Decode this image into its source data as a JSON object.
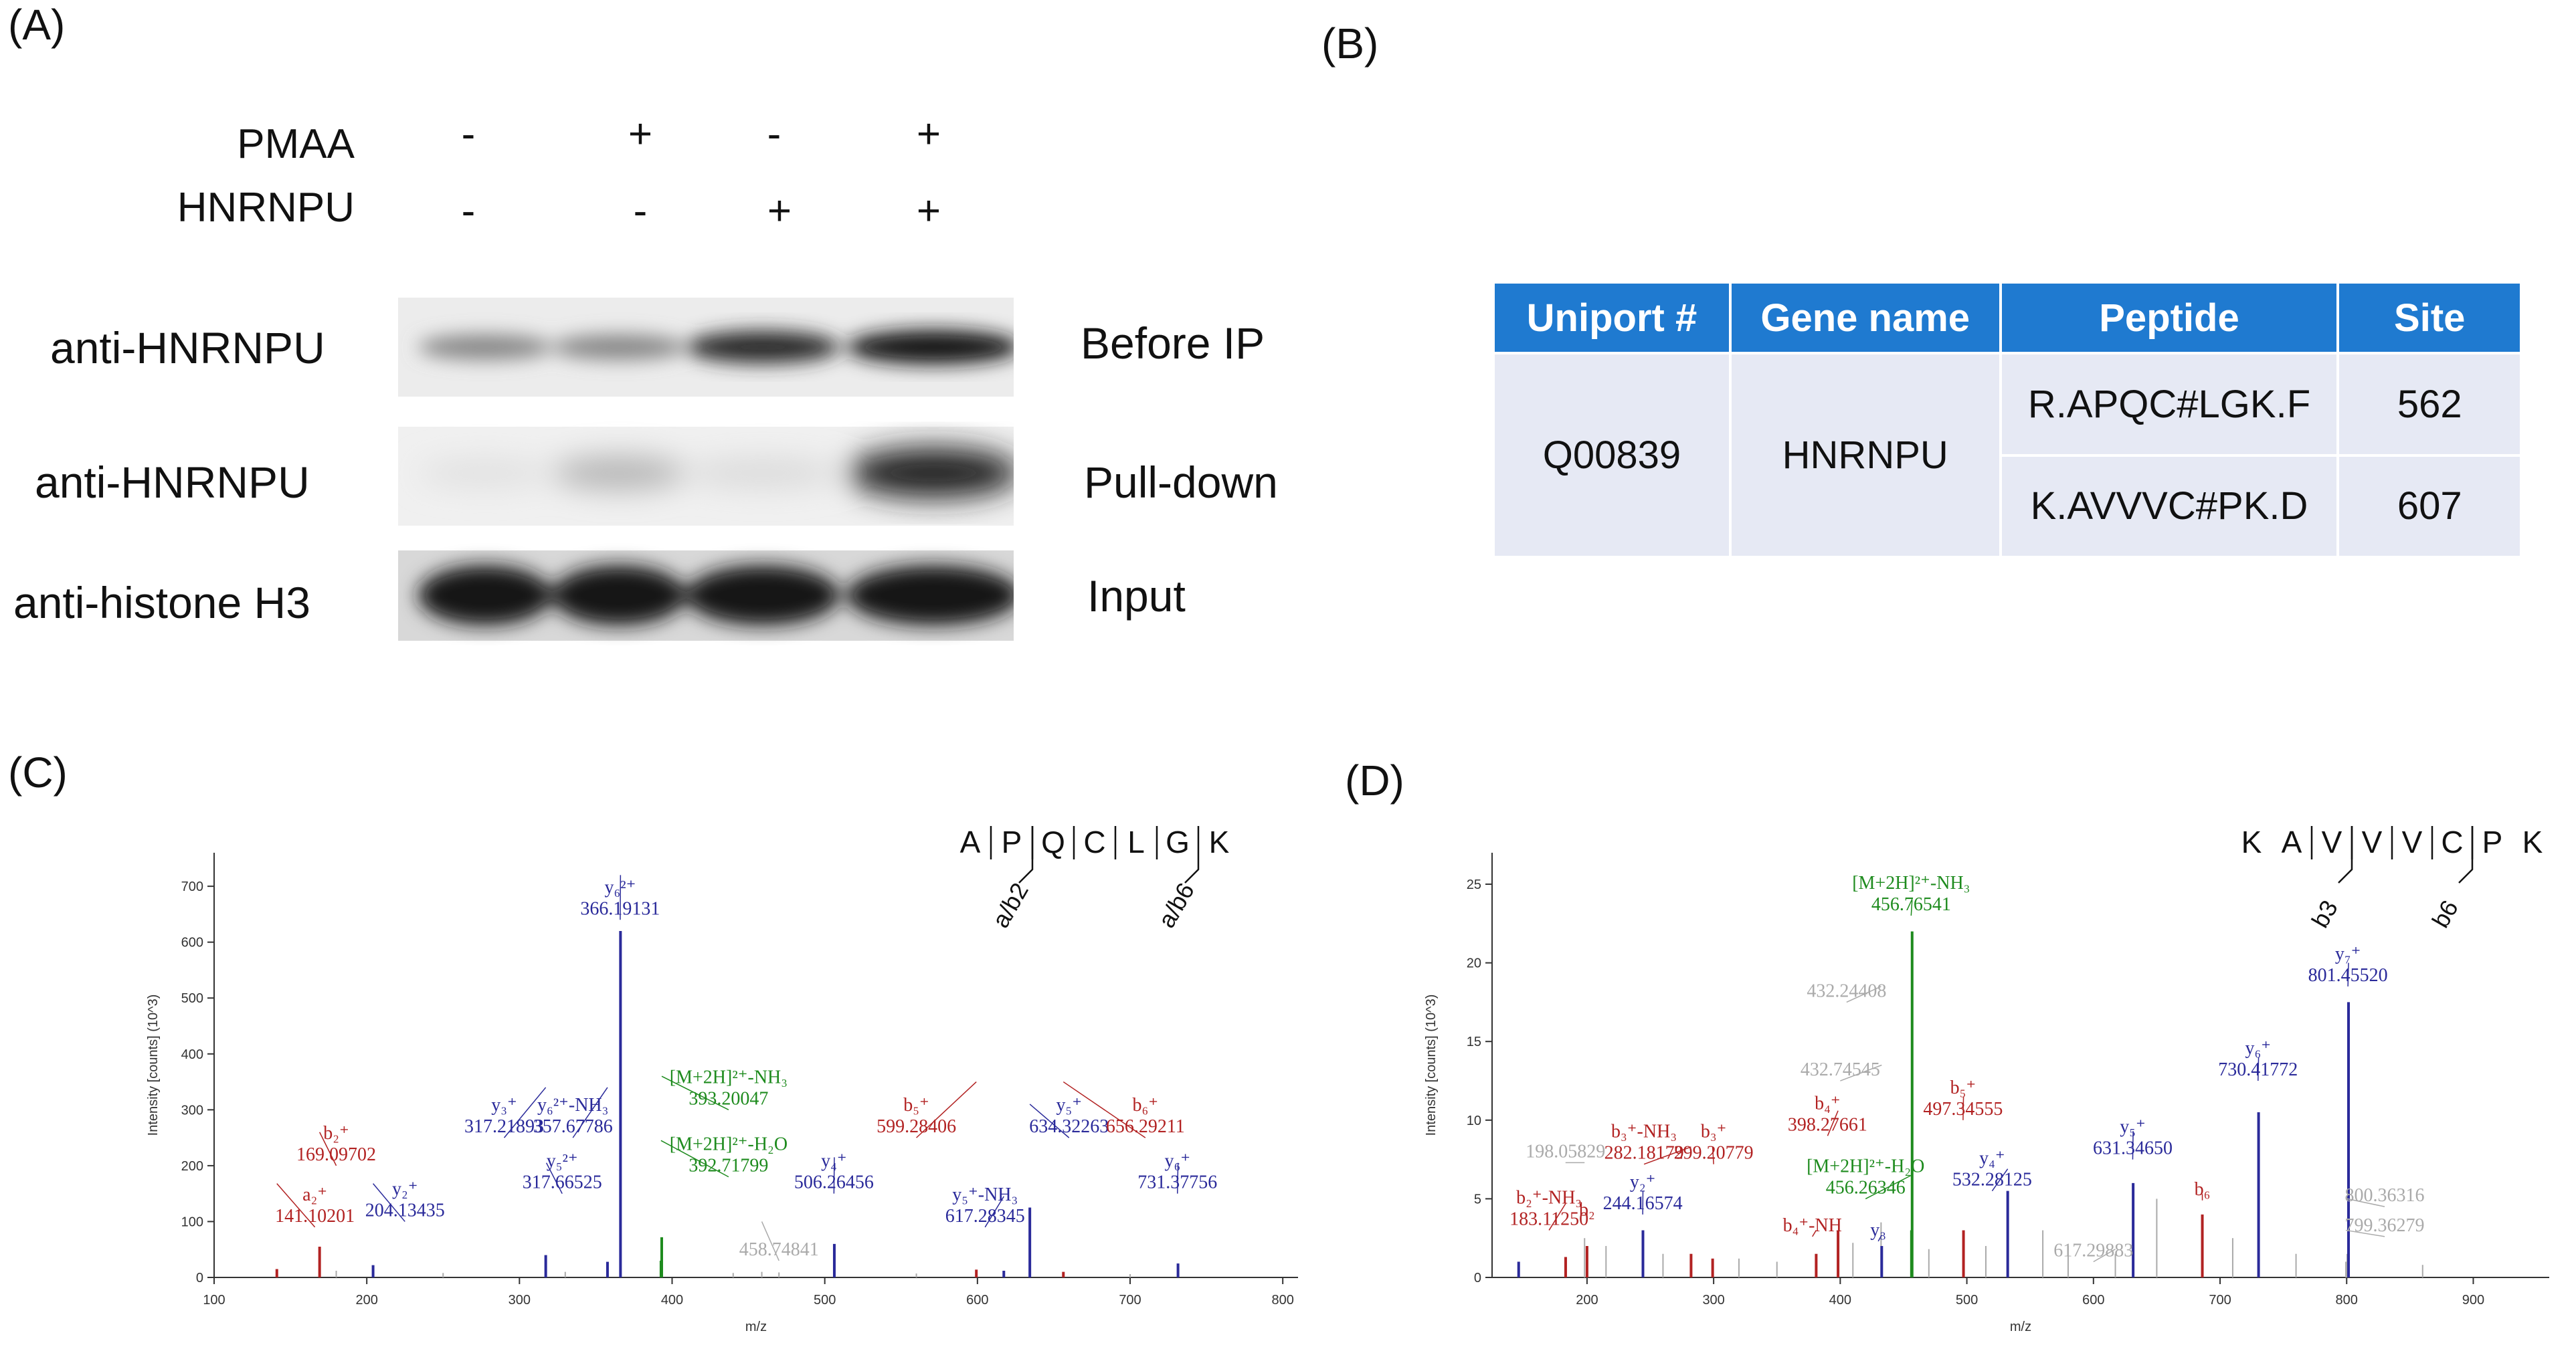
{
  "panels": {
    "a": "(A)",
    "b": "(B)",
    "c": "(C)",
    "d": "(D)"
  },
  "panel_a": {
    "conditions": [
      {
        "name": "PMAA",
        "values": [
          "-",
          "+",
          "-",
          "+"
        ]
      },
      {
        "name": "HNRNPU",
        "values": [
          "-",
          "-",
          "+",
          "+"
        ]
      }
    ],
    "rows": [
      {
        "antibody": "anti-HNRNPU",
        "description": "Before IP",
        "intensities": [
          0.45,
          0.45,
          0.85,
          0.95
        ]
      },
      {
        "antibody": "anti-HNRNPU",
        "description": "Pull-down",
        "intensities": [
          0.05,
          0.25,
          0.08,
          0.9
        ]
      },
      {
        "antibody": "anti-histone H3",
        "description": "Input",
        "intensities": [
          0.95,
          0.95,
          0.95,
          0.95
        ]
      }
    ]
  },
  "panel_b": {
    "headers": [
      "Uniport #",
      "Gene name",
      "Peptide",
      "Site"
    ],
    "uniprot": "Q00839",
    "gene": "HNRNPU",
    "rows": [
      {
        "peptide": "R.APQC#LGK.F",
        "site": "562"
      },
      {
        "peptide": "K.AVVVC#PK.D",
        "site": "607"
      }
    ],
    "colors": {
      "header_bg": "#1f7ad0",
      "cell_bg": "#e6e9f4"
    }
  },
  "chart_data": [
    {
      "type": "bar",
      "panel": "C",
      "xlabel": "m/z",
      "ylabel": "Intensity [counts] (10^3)",
      "xlim": [
        100,
        810
      ],
      "ylim": [
        0,
        760
      ],
      "xticks": [
        100,
        200,
        300,
        400,
        500,
        600,
        700,
        800
      ],
      "yticks": [
        0,
        100,
        200,
        300,
        400,
        500,
        600,
        700
      ],
      "peptide": {
        "sequence": [
          "A",
          "P",
          "Q",
          "C",
          "L",
          "G",
          "K"
        ],
        "y_ions": [
          "y6",
          "y5",
          "y4",
          "y3",
          "y2"
        ],
        "b_ions": [
          "a/b2",
          "a/b6"
        ]
      },
      "peaks": [
        {
          "mz": 141.1,
          "intensity": 15,
          "color": "#b22222"
        },
        {
          "mz": 169.1,
          "intensity": 55,
          "color": "#b22222"
        },
        {
          "mz": 204.13,
          "intensity": 22,
          "color": "#2a2a9a"
        },
        {
          "mz": 317.22,
          "intensity": 40,
          "color": "#2a2a9a"
        },
        {
          "mz": 357.68,
          "intensity": 28,
          "color": "#2a2a9a"
        },
        {
          "mz": 366.19,
          "intensity": 620,
          "color": "#2a2a9a"
        },
        {
          "mz": 392.72,
          "intensity": 30,
          "color": "#1e8b1e"
        },
        {
          "mz": 393.2,
          "intensity": 72,
          "color": "#1e8b1e"
        },
        {
          "mz": 458.75,
          "intensity": 10,
          "color": "#aaaaaa"
        },
        {
          "mz": 506.26,
          "intensity": 60,
          "color": "#2a2a9a"
        },
        {
          "mz": 599.28,
          "intensity": 14,
          "color": "#b22222"
        },
        {
          "mz": 617.28,
          "intensity": 12,
          "color": "#2a2a9a"
        },
        {
          "mz": 634.32,
          "intensity": 125,
          "color": "#2a2a9a"
        },
        {
          "mz": 656.29,
          "intensity": 10,
          "color": "#b22222"
        },
        {
          "mz": 731.38,
          "intensity": 25,
          "color": "#2a2a9a"
        },
        {
          "mz": 180,
          "intensity": 12,
          "color": "#aaaaaa"
        },
        {
          "mz": 250,
          "intensity": 8,
          "color": "#aaaaaa"
        },
        {
          "mz": 330,
          "intensity": 10,
          "color": "#aaaaaa"
        },
        {
          "mz": 440,
          "intensity": 8,
          "color": "#aaaaaa"
        },
        {
          "mz": 470,
          "intensity": 9,
          "color": "#aaaaaa"
        },
        {
          "mz": 560,
          "intensity": 7,
          "color": "#aaaaaa"
        },
        {
          "mz": 700,
          "intensity": 6,
          "color": "#aaaaaa"
        }
      ],
      "annotations": [
        {
          "lines": [
            "a₂⁺",
            "141.10201"
          ],
          "color": "#b22222",
          "mz": 141.1,
          "ty": 168,
          "lx": 166,
          "ly": 90
        },
        {
          "lines": [
            "b₂⁺",
            "169.09702"
          ],
          "color": "#b22222",
          "mz": 169.1,
          "ty": 260,
          "lx": 180,
          "ly": 200
        },
        {
          "lines": [
            "y₂⁺",
            "204.13435"
          ],
          "color": "#2a2a9a",
          "mz": 204.13,
          "ty": 168,
          "lx": 225,
          "ly": 100
        },
        {
          "lines": [
            "y₃⁺",
            "317.21893"
          ],
          "color": "#2a2a9a",
          "mz": 317.22,
          "ty": 340,
          "lx": 290,
          "ly": 250
        },
        {
          "lines": [
            "y₅²⁺",
            "317.66525"
          ],
          "color": "#2a2a9a",
          "mz": 317.66,
          "ty": 205,
          "lx": 328,
          "ly": 150
        },
        {
          "lines": [
            "y₆²⁺-NH₃",
            "357.67786"
          ],
          "color": "#2a2a9a",
          "mz": 357.68,
          "ty": 340,
          "lx": 335,
          "ly": 250
        },
        {
          "lines": [
            "y₆²⁺",
            "366.19131"
          ],
          "color": "#2a2a9a",
          "mz": 366.19,
          "ty": 720,
          "lx": 366,
          "ly": 640
        },
        {
          "lines": [
            "[M+2H]²⁺-NH₃",
            "393.20047"
          ],
          "color": "#1e8b1e",
          "mz": 393.2,
          "ty": 360,
          "lx": 437,
          "ly": 300
        },
        {
          "lines": [
            "[M+2H]²⁺-H₂O",
            "392.71799"
          ],
          "color": "#1e8b1e",
          "mz": 392.72,
          "ty": 245,
          "lx": 437,
          "ly": 180
        },
        {
          "lines": [
            "458.74841"
          ],
          "color": "#aaaaaa",
          "mz": 458.75,
          "ty": 100,
          "lx": 470,
          "ly": 30
        },
        {
          "lines": [
            "y₄⁺",
            "506.26456"
          ],
          "color": "#2a2a9a",
          "mz": 506.26,
          "ty": 215,
          "lx": 506,
          "ly": 150
        },
        {
          "lines": [
            "b₅⁺",
            "599.28406"
          ],
          "color": "#b22222",
          "mz": 599.28,
          "ty": 350,
          "lx": 560,
          "ly": 250
        },
        {
          "lines": [
            "y₅⁺-NH₃",
            "617.28345"
          ],
          "color": "#2a2a9a",
          "mz": 617.28,
          "ty": 145,
          "lx": 605,
          "ly": 90
        },
        {
          "lines": [
            "y₅⁺",
            "634.32263"
          ],
          "color": "#2a2a9a",
          "mz": 634.32,
          "ty": 310,
          "lx": 660,
          "ly": 250
        },
        {
          "lines": [
            "b₆⁺",
            "656.29211"
          ],
          "color": "#b22222",
          "mz": 656.29,
          "ty": 350,
          "lx": 710,
          "ly": 250
        },
        {
          "lines": [
            "y₆⁺",
            "731.37756"
          ],
          "color": "#2a2a9a",
          "mz": 731.38,
          "ty": 205,
          "lx": 731,
          "ly": 150
        }
      ]
    },
    {
      "type": "bar",
      "panel": "D",
      "xlabel": "m/z",
      "ylabel": "Intensity [counts] (10^3)",
      "xlim": [
        125,
        960
      ],
      "ylim": [
        0,
        27
      ],
      "xticks": [
        200,
        300,
        400,
        500,
        600,
        700,
        800,
        900
      ],
      "yticks": [
        0,
        5,
        10,
        15,
        20,
        25
      ],
      "peptide": {
        "sequence": [
          "K",
          "A",
          "V",
          "V",
          "V",
          "C",
          "P",
          "K"
        ],
        "y_ions": [
          "y7",
          "y6",
          "y5",
          "y4",
          "y2"
        ],
        "b_ions": [
          "b3",
          "b6"
        ]
      },
      "peaks": [
        {
          "mz": 146.0,
          "intensity": 1.0,
          "color": "#2a2a9a"
        },
        {
          "mz": 183.11,
          "intensity": 1.3,
          "color": "#b22222"
        },
        {
          "mz": 198.06,
          "intensity": 2.5,
          "color": "#aaaaaa"
        },
        {
          "mz": 200.0,
          "intensity": 2.0,
          "color": "#b22222"
        },
        {
          "mz": 244.17,
          "intensity": 3.0,
          "color": "#2a2a9a"
        },
        {
          "mz": 282.18,
          "intensity": 1.5,
          "color": "#b22222"
        },
        {
          "mz": 299.21,
          "intensity": 1.2,
          "color": "#b22222"
        },
        {
          "mz": 381.0,
          "intensity": 1.5,
          "color": "#b22222"
        },
        {
          "mz": 398.28,
          "intensity": 3.0,
          "color": "#b22222"
        },
        {
          "mz": 432.24,
          "intensity": 3.5,
          "color": "#aaaaaa"
        },
        {
          "mz": 432.75,
          "intensity": 2.0,
          "color": "#2a2a9a"
        },
        {
          "mz": 456.26,
          "intensity": 3.0,
          "color": "#1e8b1e"
        },
        {
          "mz": 456.77,
          "intensity": 22.0,
          "color": "#1e8b1e"
        },
        {
          "mz": 497.35,
          "intensity": 3.0,
          "color": "#b22222"
        },
        {
          "mz": 532.28,
          "intensity": 5.5,
          "color": "#2a2a9a"
        },
        {
          "mz": 617.3,
          "intensity": 1.5,
          "color": "#aaaaaa"
        },
        {
          "mz": 631.35,
          "intensity": 6.0,
          "color": "#2a2a9a"
        },
        {
          "mz": 686.0,
          "intensity": 4.0,
          "color": "#b22222"
        },
        {
          "mz": 730.42,
          "intensity": 10.5,
          "color": "#2a2a9a"
        },
        {
          "mz": 799.36,
          "intensity": 1.0,
          "color": "#aaaaaa"
        },
        {
          "mz": 800.36,
          "intensity": 1.5,
          "color": "#aaaaaa"
        },
        {
          "mz": 801.46,
          "intensity": 17.5,
          "color": "#2a2a9a"
        },
        {
          "mz": 215,
          "intensity": 2.0,
          "color": "#aaaaaa"
        },
        {
          "mz": 260,
          "intensity": 1.5,
          "color": "#aaaaaa"
        },
        {
          "mz": 320,
          "intensity": 1.2,
          "color": "#aaaaaa"
        },
        {
          "mz": 350,
          "intensity": 1.0,
          "color": "#aaaaaa"
        },
        {
          "mz": 410,
          "intensity": 2.2,
          "color": "#aaaaaa"
        },
        {
          "mz": 470,
          "intensity": 1.8,
          "color": "#aaaaaa"
        },
        {
          "mz": 515,
          "intensity": 2.0,
          "color": "#aaaaaa"
        },
        {
          "mz": 560,
          "intensity": 3.0,
          "color": "#aaaaaa"
        },
        {
          "mz": 580,
          "intensity": 2.0,
          "color": "#aaaaaa"
        },
        {
          "mz": 650,
          "intensity": 5.0,
          "color": "#aaaaaa"
        },
        {
          "mz": 710,
          "intensity": 2.5,
          "color": "#aaaaaa"
        },
        {
          "mz": 760,
          "intensity": 1.5,
          "color": "#aaaaaa"
        },
        {
          "mz": 860,
          "intensity": 0.8,
          "color": "#aaaaaa"
        }
      ],
      "annotations": [
        {
          "lines": [
            "198.05829"
          ],
          "color": "#aaaaaa",
          "mz": 198.06,
          "ty": 7.3,
          "lx": 183,
          "ly": 7.3
        },
        {
          "lines": [
            "b₂⁺-NH₃",
            "183.11250"
          ],
          "color": "#b22222",
          "mz": 183.11,
          "ty": 4.7,
          "lx": 170,
          "ly": 3.0
        },
        {
          "lines": [
            "b₂",
            "200.0"
          ],
          "color": "#b22222",
          "mz": 200.0,
          "ty": 4.2,
          "lx": 200,
          "ly": 3.6,
          "hideValue": true
        },
        {
          "lines": [
            "y₂⁺",
            "244.16574"
          ],
          "color": "#2a2a9a",
          "mz": 244.17,
          "ty": 5.5,
          "lx": 244,
          "ly": 4.0
        },
        {
          "lines": [
            "b₃⁺-NH₃",
            "282.18179"
          ],
          "color": "#b22222",
          "mz": 282.18,
          "ty": 8.3,
          "lx": 245,
          "ly": 7.2
        },
        {
          "lines": [
            "b₃⁺",
            "299.20779"
          ],
          "color": "#b22222",
          "mz": 299.21,
          "ty": 8.3,
          "lx": 300,
          "ly": 7.2
        },
        {
          "lines": [
            "432.24408"
          ],
          "color": "#aaaaaa",
          "mz": 432.24,
          "ty": 18.5,
          "lx": 405,
          "ly": 17.5
        },
        {
          "lines": [
            "432.74545"
          ],
          "color": "#aaaaaa",
          "mz": 432.75,
          "ty": 13.5,
          "lx": 400,
          "ly": 12.5
        },
        {
          "lines": [
            "b₄⁺",
            "398.27661"
          ],
          "color": "#b22222",
          "mz": 398.28,
          "ty": 10.6,
          "lx": 390,
          "ly": 9.0
        },
        {
          "lines": [
            "[M+2H]²⁺-H₂O",
            "456.26346"
          ],
          "color": "#1e8b1e",
          "mz": 456.26,
          "ty": 6.5,
          "lx": 420,
          "ly": 5.0
        },
        {
          "lines": [
            "b₄⁺-NH",
            ""
          ],
          "color": "#b22222",
          "mz": 381.0,
          "ty": 3.0,
          "lx": 378,
          "ly": 2.6,
          "hideValue": true
        },
        {
          "lines": [
            "y₃",
            ""
          ],
          "color": "#2a2a9a",
          "mz": 432.75,
          "ty": 2.7,
          "lx": 430,
          "ly": 2.3,
          "hideValue": true
        },
        {
          "lines": [
            "[M+2H]²⁺-NH₃",
            "456.76541"
          ],
          "color": "#1e8b1e",
          "mz": 456.77,
          "ty": 24.0,
          "lx": 456,
          "ly": 23.0
        },
        {
          "lines": [
            "b₅⁺",
            "497.34555"
          ],
          "color": "#b22222",
          "mz": 497.35,
          "ty": 11.5,
          "lx": 497,
          "ly": 10.0
        },
        {
          "lines": [
            "y₄⁺",
            "532.28125"
          ],
          "color": "#2a2a9a",
          "mz": 532.28,
          "ty": 6.9,
          "lx": 520,
          "ly": 5.5
        },
        {
          "lines": [
            "617.29883"
          ],
          "color": "#aaaaaa",
          "mz": 617.3,
          "ty": 1.8,
          "lx": 600,
          "ly": 1.0
        },
        {
          "lines": [
            "y₅⁺",
            "631.34650"
          ],
          "color": "#2a2a9a",
          "mz": 631.35,
          "ty": 9.3,
          "lx": 631,
          "ly": 7.5
        },
        {
          "lines": [
            "b₆",
            ""
          ],
          "color": "#b22222",
          "mz": 686.0,
          "ty": 5.3,
          "lx": 686,
          "ly": 4.9,
          "hideValue": true
        },
        {
          "lines": [
            "y₆⁺",
            "730.41772"
          ],
          "color": "#2a2a9a",
          "mz": 730.42,
          "ty": 14.0,
          "lx": 730,
          "ly": 12.5
        },
        {
          "lines": [
            "y₇⁺",
            "801.45520"
          ],
          "color": "#2a2a9a",
          "mz": 801.46,
          "ty": 20.0,
          "lx": 801,
          "ly": 18.5
        },
        {
          "lines": [
            "800.36316"
          ],
          "color": "#aaaaaa",
          "mz": 800.36,
          "ty": 5.0,
          "lx": 830,
          "ly": 4.5
        },
        {
          "lines": [
            "799.36279"
          ],
          "color": "#aaaaaa",
          "mz": 799.36,
          "ty": 3.0,
          "lx": 830,
          "ly": 2.6
        }
      ]
    }
  ]
}
